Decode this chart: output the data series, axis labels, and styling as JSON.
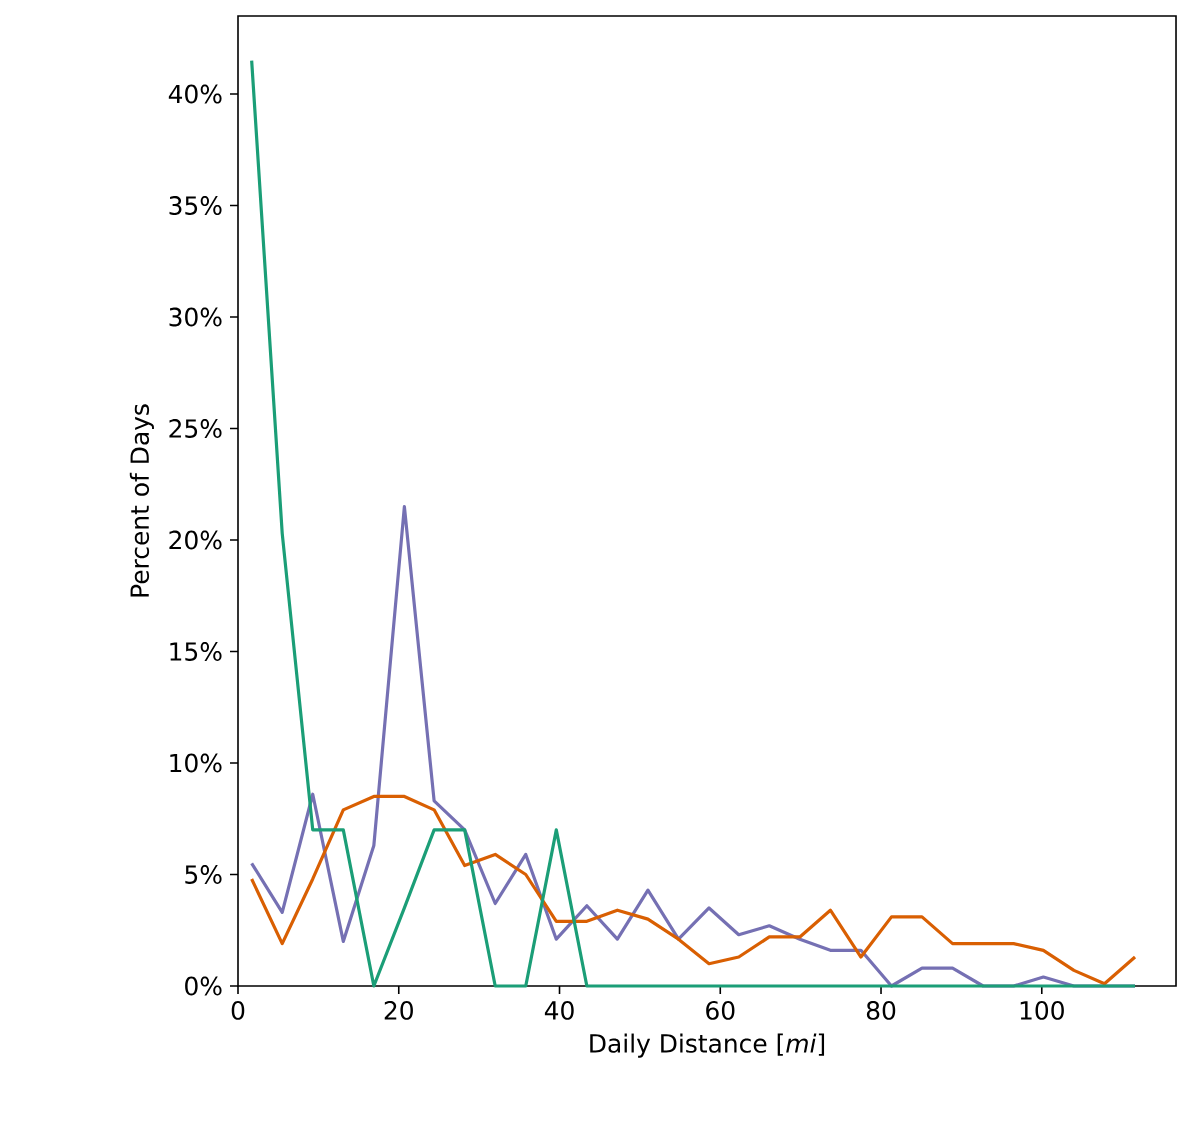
{
  "chart_data": {
    "type": "line",
    "xlabel": "Daily Distance [*mi*]",
    "ylabel": "Percent of Days",
    "x": [
      1.7,
      5.5,
      9.3,
      13.1,
      16.9,
      20.7,
      24.4,
      28.2,
      32.0,
      35.8,
      39.6,
      43.4,
      47.2,
      51.0,
      54.8,
      58.6,
      62.3,
      66.1,
      69.9,
      73.7,
      77.5,
      81.3,
      85.1,
      88.9,
      92.7,
      96.5,
      100.2,
      104.0,
      107.8,
      111.6
    ],
    "series": [
      {
        "color": "#7570b3",
        "values": [
          5.5,
          3.3,
          8.6,
          2.0,
          6.3,
          21.5,
          8.3,
          7.0,
          3.7,
          5.9,
          2.1,
          3.6,
          2.1,
          4.3,
          2.1,
          3.5,
          2.3,
          2.7,
          2.1,
          1.6,
          1.6,
          0,
          0.8,
          0.8,
          0,
          0,
          0.4,
          0,
          0,
          0
        ]
      },
      {
        "color": "#d95f02",
        "values": [
          4.8,
          1.9,
          4.8,
          7.9,
          8.5,
          8.5,
          7.9,
          5.4,
          5.9,
          5.0,
          2.9,
          2.9,
          3.4,
          3.0,
          2.1,
          1.0,
          1.3,
          2.2,
          2.2,
          3.4,
          1.3,
          3.1,
          3.1,
          1.9,
          1.9,
          1.9,
          1.6,
          0.7,
          0.1,
          1.3
        ]
      },
      {
        "color": "#1b9e77",
        "values": [
          41.5,
          20.3,
          7.0,
          7.0,
          0,
          3.5,
          7.0,
          7.0,
          0,
          0,
          7.0,
          0,
          0,
          0,
          0,
          0,
          0,
          0,
          0,
          0,
          0,
          0,
          0,
          0,
          0,
          0,
          0,
          0,
          0,
          0
        ]
      }
    ],
    "xlim": [
      0,
      116.7
    ],
    "ylim": [
      0,
      43.5
    ],
    "xticks": [
      0,
      20,
      40,
      60,
      80,
      100
    ],
    "yticks": [
      {
        "value": 0,
        "label": "0%"
      },
      {
        "value": 5,
        "label": "5%"
      },
      {
        "value": 10,
        "label": "10%"
      },
      {
        "value": 15,
        "label": "15%"
      },
      {
        "value": 20,
        "label": "20%"
      },
      {
        "value": 25,
        "label": "25%"
      },
      {
        "value": 30,
        "label": "30%"
      },
      {
        "value": 35,
        "label": "35%"
      },
      {
        "value": 40,
        "label": "40%"
      }
    ]
  }
}
